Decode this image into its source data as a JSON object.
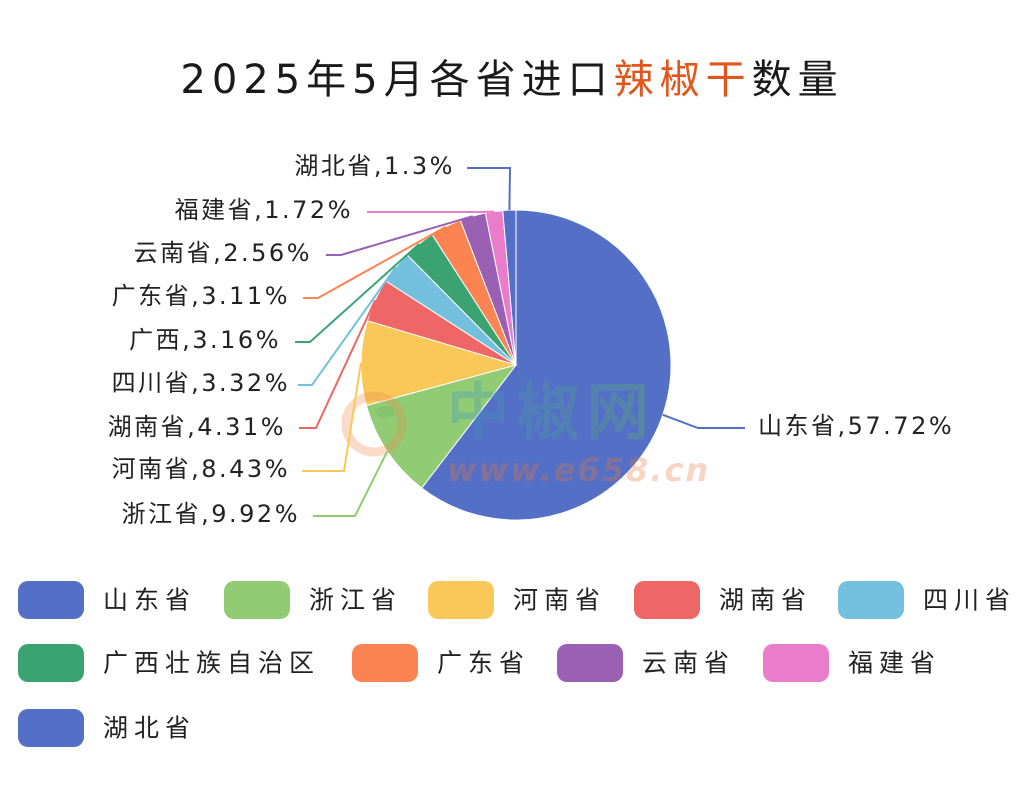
{
  "chart_data": {
    "type": "pie",
    "title": "2025年5月各省进口辣椒干数量",
    "title_highlight": "辣椒干",
    "title_color": "#1a1a1a",
    "title_highlight_color": "#e0561c",
    "categories": [
      "山东省",
      "浙江省",
      "河南省",
      "湖南省",
      "四川省",
      "广西壮族自治区",
      "广东省",
      "云南省",
      "福建省",
      "湖北省"
    ],
    "values": [
      57.72,
      9.92,
      8.43,
      4.31,
      3.32,
      3.16,
      3.11,
      2.56,
      1.72,
      1.3
    ],
    "labels": [
      "山东省,57.72%",
      "浙江省,9.92%",
      "河南省,8.43%",
      "湖南省,4.31%",
      "四川省,3.32%",
      "广西,3.16%",
      "广东省,3.11%",
      "云南省,2.56%",
      "福建省,1.72%",
      "湖北省,1.3%"
    ],
    "colors": [
      "#5470c6",
      "#91cc75",
      "#fac858",
      "#ee6666",
      "#73c0de",
      "#3ba272",
      "#fc8452",
      "#9a60b4",
      "#ea7ccc",
      "#5470c6"
    ],
    "legend_position": "bottom"
  },
  "watermark": {
    "name": "中椒网",
    "url": "www.e658.cn"
  }
}
